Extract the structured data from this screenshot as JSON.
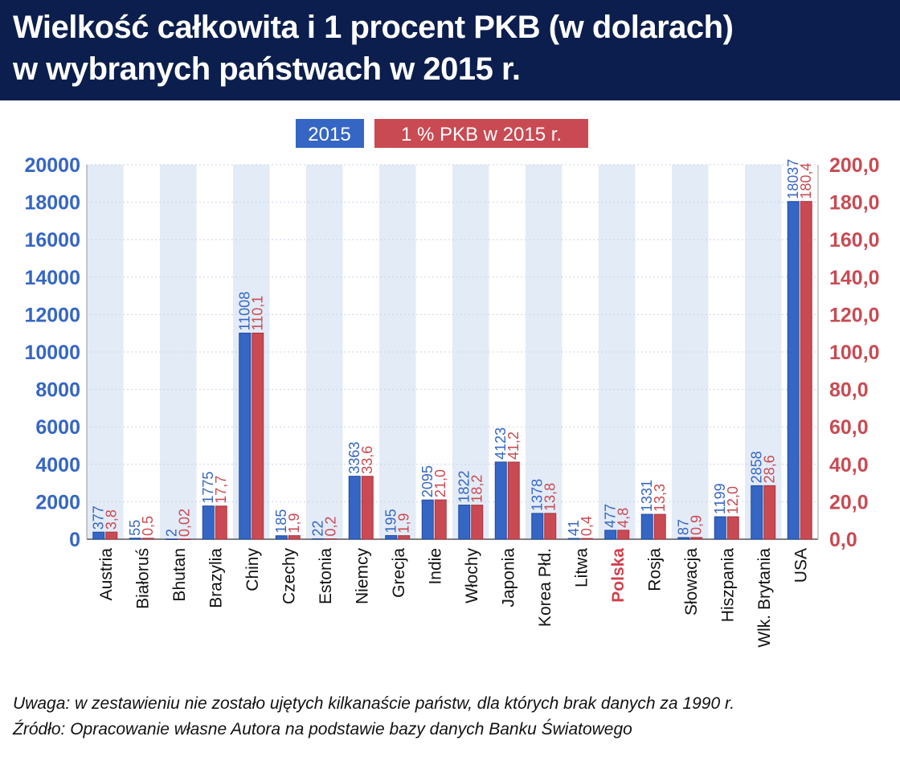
{
  "title": {
    "line1": "Wielkość całkowita i 1 procent PKB (w dolarach)",
    "line2": "w wybranych państwach w 2015 r."
  },
  "footer": {
    "note": "Uwaga: w zestawieniu nie zostało ujętych kilkanaście państw, dla których brak danych za 1990 r.",
    "source": "Źródło: Opracowanie własne Autora na podstawie bazy danych Banku Światowego"
  },
  "colors": {
    "header_bg": "#0b1e4d",
    "series_2015": "#3566c4",
    "series_pkb": "#c94a52",
    "stripe": "#e3ebf7",
    "highlight_label": "#d1414c"
  },
  "chart_data": {
    "type": "bar",
    "legend_position": "top-center",
    "grid": true,
    "highlight_category": "Polska",
    "categories": [
      "Austria",
      "Białoruś",
      "Bhutan",
      "Brazylia",
      "Chiny",
      "Czechy",
      "Estonia",
      "Niemcy",
      "Grecja",
      "Indie",
      "Włochy",
      "Japonia",
      "Korea Płd.",
      "Litwa",
      "Polska",
      "Rosja",
      "Słowacja",
      "Hiszpania",
      "Wlk. Brytania",
      "USA"
    ],
    "series": [
      {
        "name": "2015",
        "axis": "left",
        "values": [
          377,
          55,
          2,
          1775,
          11008,
          185,
          22,
          3363,
          195,
          2095,
          1822,
          4123,
          1378,
          41,
          477,
          1331,
          87,
          1199,
          2858,
          18037
        ],
        "labels": [
          "377",
          "55",
          "2",
          "1775",
          "11008",
          "185",
          "22",
          "3363",
          "195",
          "2095",
          "1822",
          "4123",
          "1378",
          "41",
          "477",
          "1331",
          "87",
          "1199",
          "2858",
          "18037"
        ]
      },
      {
        "name": "1 % PKB w 2015 r.",
        "axis": "right",
        "values": [
          3.8,
          0.5,
          0.02,
          17.7,
          110.1,
          1.9,
          0.2,
          33.6,
          1.9,
          21.0,
          18.2,
          41.2,
          13.8,
          0.4,
          4.8,
          13.3,
          0.9,
          12.0,
          28.6,
          180.4
        ],
        "labels": [
          "3,8",
          "0,5",
          "0,02",
          "17,7",
          "110,1",
          "1,9",
          "0,2",
          "33,6",
          "1,9",
          "21,0",
          "18,2",
          "41,2",
          "13,8",
          "0,4",
          "4,8",
          "13,3",
          "0,9",
          "12,0",
          "28,6",
          "180,4"
        ]
      }
    ],
    "y_left": {
      "lim": [
        0,
        20000
      ],
      "ticks": [
        "0",
        "2000",
        "4000",
        "6000",
        "8000",
        "10000",
        "12000",
        "14000",
        "16000",
        "18000",
        "20000"
      ]
    },
    "y_right": {
      "lim": [
        0,
        200
      ],
      "ticks": [
        "0,0",
        "20,0",
        "40,0",
        "60,0",
        "80,0",
        "100,0",
        "120,0",
        "140,0",
        "160,0",
        "180,0",
        "200,0"
      ]
    }
  }
}
